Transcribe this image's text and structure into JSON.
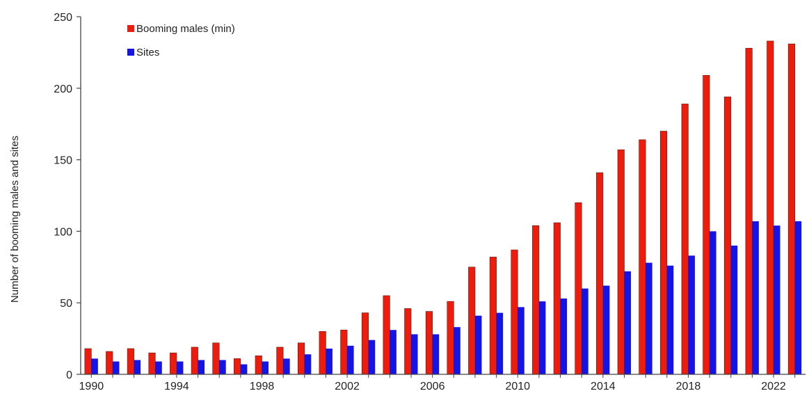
{
  "chart_data": {
    "type": "bar",
    "title": "",
    "xlabel": "",
    "ylabel": "Number of booming males and sites",
    "ylim": [
      0,
      250
    ],
    "yticks": [
      0,
      50,
      100,
      150,
      200,
      250
    ],
    "xtick_labels": [
      "1990",
      "1994",
      "1998",
      "2002",
      "2006",
      "2010",
      "2014",
      "2018",
      "2022"
    ],
    "categories": [
      1990,
      1991,
      1992,
      1993,
      1994,
      1995,
      1996,
      1997,
      1998,
      1999,
      2000,
      2001,
      2002,
      2003,
      2004,
      2005,
      2006,
      2007,
      2008,
      2009,
      2010,
      2011,
      2012,
      2013,
      2014,
      2015,
      2016,
      2017,
      2018,
      2019,
      2020,
      2021,
      2022,
      2023
    ],
    "grid": false,
    "legend_position": "top-left",
    "series": [
      {
        "name": "Booming males (min)",
        "color": "#ee1c0c",
        "values": [
          18,
          16,
          18,
          15,
          15,
          19,
          22,
          11,
          13,
          19,
          22,
          30,
          31,
          43,
          55,
          46,
          44,
          51,
          75,
          82,
          87,
          104,
          106,
          120,
          141,
          157,
          164,
          170,
          189,
          209,
          194,
          228,
          233,
          231
        ]
      },
      {
        "name": "Sites",
        "color": "#1414e6",
        "values": [
          11,
          9,
          10,
          9,
          9,
          10,
          10,
          7,
          9,
          11,
          14,
          18,
          20,
          24,
          31,
          28,
          28,
          33,
          41,
          43,
          47,
          51,
          53,
          60,
          62,
          72,
          78,
          76,
          83,
          100,
          90,
          107,
          104,
          107
        ]
      }
    ]
  }
}
